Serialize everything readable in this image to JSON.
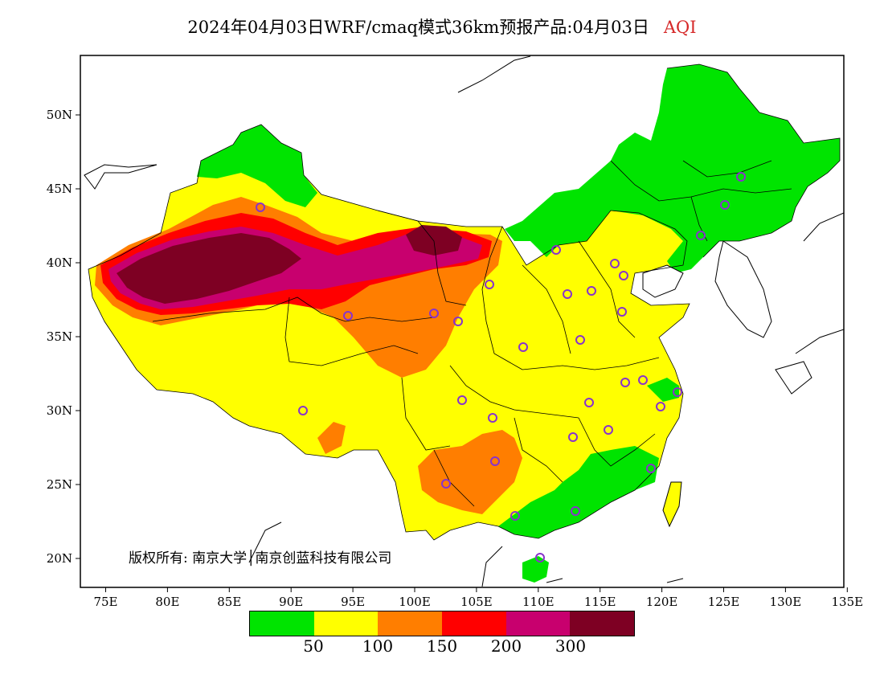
{
  "title": {
    "main": "2024年04月03日WRF/cmaq模式36km预报产品:04月03日",
    "variable": "AQI",
    "variable_color": "#d62828"
  },
  "axes": {
    "x_ticks": [
      "75E",
      "80E",
      "85E",
      "90E",
      "95E",
      "100E",
      "105E",
      "110E",
      "115E",
      "120E",
      "125E",
      "130E",
      "135E"
    ],
    "y_ticks": [
      "50N",
      "45N",
      "40N",
      "35N",
      "30N",
      "25N",
      "20N"
    ]
  },
  "copyright": "版权所有: 南京大学│南京创蓝科技有限公司",
  "legend": {
    "colors": [
      "#00e400",
      "#ffff00",
      "#ff7e00",
      "#ff0000",
      "#c8006e",
      "#7e0023"
    ],
    "labels": [
      "50",
      "100",
      "150",
      "200",
      "300"
    ]
  },
  "map": {
    "region_colors": {
      "good": "#00e400",
      "moderate": "#ffff00",
      "unhealthy_sensitive": "#ff7e00",
      "unhealthy": "#ff0000",
      "very_unhealthy": "#c8006e",
      "hazardous": "#7e0023"
    },
    "marker_color": "#8833cc"
  }
}
